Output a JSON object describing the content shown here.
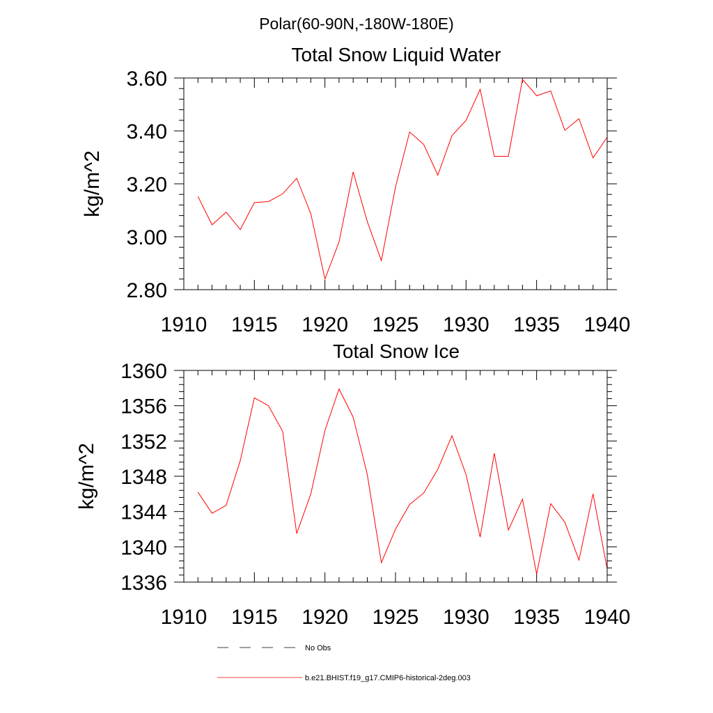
{
  "figure": {
    "suptitle": "Polar(60-90N,-180W-180E)"
  },
  "chart_data": [
    {
      "type": "line",
      "title": "Total Snow Liquid Water",
      "xlabel": "",
      "ylabel": "kg/m^2",
      "xlim": [
        1910,
        1940
      ],
      "ylim": [
        2.8,
        3.6
      ],
      "xticks": [
        1910,
        1915,
        1920,
        1925,
        1930,
        1935,
        1940
      ],
      "yticks": [
        2.8,
        3.0,
        3.2,
        3.4,
        3.6
      ],
      "ytick_labels": [
        "2.80",
        "3.00",
        "3.20",
        "3.40",
        "3.60"
      ],
      "grid": false,
      "series": [
        {
          "name": "b.e21.BHIST.f19_g17.CMIP6-historical-2deg.003",
          "color": "#ff0000",
          "x": [
            1911,
            1912,
            1913,
            1914,
            1915,
            1916,
            1917,
            1918,
            1919,
            1920,
            1921,
            1922,
            1923,
            1924,
            1925,
            1926,
            1927,
            1928,
            1929,
            1930,
            1931,
            1932,
            1933,
            1934,
            1935,
            1936,
            1937,
            1938,
            1939,
            1940
          ],
          "values": [
            3.152,
            3.045,
            3.093,
            3.027,
            3.129,
            3.133,
            3.162,
            3.221,
            3.087,
            2.84,
            2.98,
            3.245,
            3.057,
            2.91,
            3.188,
            3.396,
            3.349,
            3.233,
            3.382,
            3.44,
            3.557,
            3.304,
            3.304,
            3.595,
            3.533,
            3.551,
            3.402,
            3.446,
            3.298,
            3.376
          ]
        }
      ]
    },
    {
      "type": "line",
      "title": "Total Snow Ice",
      "xlabel": "",
      "ylabel": "kg/m^2",
      "xlim": [
        1910,
        1940
      ],
      "ylim": [
        1336,
        1360
      ],
      "xticks": [
        1910,
        1915,
        1920,
        1925,
        1930,
        1935,
        1940
      ],
      "yticks": [
        1336,
        1340,
        1344,
        1348,
        1352,
        1356,
        1360
      ],
      "ytick_labels": [
        "1336",
        "1340",
        "1344",
        "1348",
        "1352",
        "1356",
        "1360"
      ],
      "grid": false,
      "series": [
        {
          "name": "b.e21.BHIST.f19_g17.CMIP6-historical-2deg.003",
          "color": "#ff0000",
          "x": [
            1911,
            1912,
            1913,
            1914,
            1915,
            1916,
            1917,
            1918,
            1919,
            1920,
            1921,
            1922,
            1923,
            1924,
            1925,
            1926,
            1927,
            1928,
            1929,
            1930,
            1931,
            1932,
            1933,
            1934,
            1935,
            1936,
            1937,
            1938,
            1939,
            1940
          ],
          "values": [
            1346.2,
            1343.8,
            1344.7,
            1349.8,
            1356.9,
            1356.0,
            1353.1,
            1341.5,
            1346.0,
            1353.2,
            1357.9,
            1354.7,
            1348.2,
            1338.2,
            1342.0,
            1344.8,
            1346.1,
            1348.8,
            1352.6,
            1348.2,
            1341.1,
            1350.6,
            1341.9,
            1345.4,
            1336.9,
            1344.9,
            1342.8,
            1338.5,
            1346.0,
            1337.5
          ]
        }
      ]
    }
  ],
  "legend": {
    "placement": "bottom-center",
    "entries": [
      {
        "label": "No Obs",
        "style": "dashed",
        "color": "#000000"
      },
      {
        "label": "b.e21.BHIST.f19_g17.CMIP6-historical-2deg.003",
        "style": "solid",
        "color": "#ff0000"
      }
    ]
  }
}
